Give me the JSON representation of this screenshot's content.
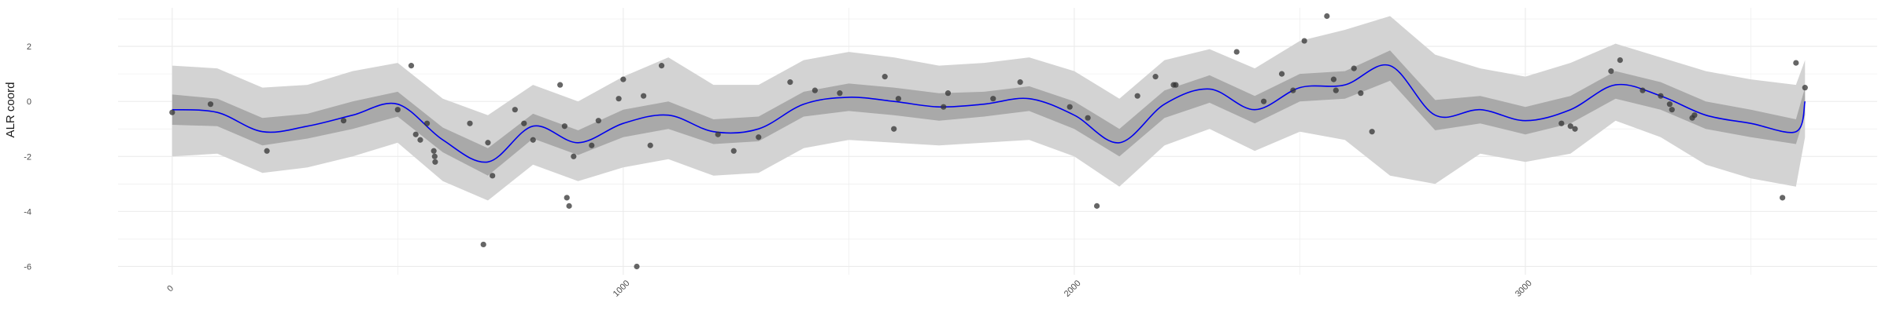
{
  "chart_data": {
    "type": "line",
    "title": "",
    "xlabel": "",
    "ylabel": "ALR coord",
    "xlim": [
      -120,
      3780
    ],
    "ylim": [
      -6.3,
      3.4
    ],
    "grid": true,
    "legend": "none",
    "x_ticks": [
      0,
      1000,
      2000,
      3000
    ],
    "x_tick_labels": [
      "0",
      "1000",
      "2000",
      "3000"
    ],
    "y_ticks": [
      -6,
      -4,
      -2,
      0,
      2
    ],
    "y_tick_labels": [
      "-6",
      "-4",
      "-2",
      "0",
      "2"
    ],
    "colors": {
      "mean_line": "#0000ee",
      "inner_band": "#a9a9a9",
      "outer_band": "#d3d3d3",
      "points": "#333333",
      "grid": "#ebebeb"
    },
    "series": [
      {
        "kind": "smooth_mean",
        "x": [
          0,
          100,
          200,
          300,
          400,
          500,
          600,
          700,
          800,
          900,
          1000,
          1100,
          1200,
          1300,
          1400,
          1500,
          1600,
          1700,
          1800,
          1900,
          2000,
          2100,
          2200,
          2300,
          2400,
          2500,
          2600,
          2700,
          2800,
          2900,
          3000,
          3100,
          3200,
          3300,
          3400,
          3500,
          3600,
          3620
        ],
        "mean": [
          -0.3,
          -0.4,
          -1.1,
          -0.9,
          -0.5,
          -0.1,
          -1.4,
          -2.2,
          -0.9,
          -1.5,
          -0.8,
          -0.5,
          -1.1,
          -1.0,
          -0.1,
          0.15,
          0.0,
          -0.2,
          -0.1,
          0.1,
          -0.5,
          -1.5,
          -0.1,
          0.45,
          -0.3,
          0.5,
          0.6,
          1.3,
          -0.5,
          -0.3,
          -0.7,
          -0.3,
          0.6,
          0.2,
          -0.5,
          -0.8,
          -1.1,
          0.0
        ],
        "inner_lower": [
          -0.85,
          -0.9,
          -1.6,
          -1.35,
          -1.0,
          -0.55,
          -1.85,
          -2.7,
          -1.35,
          -1.95,
          -1.3,
          -1.0,
          -1.55,
          -1.45,
          -0.55,
          -0.35,
          -0.5,
          -0.7,
          -0.55,
          -0.35,
          -1.0,
          -2.0,
          -0.6,
          -0.05,
          -0.8,
          0.0,
          0.1,
          0.75,
          -1.05,
          -0.8,
          -1.2,
          -0.8,
          0.1,
          -0.3,
          -1.0,
          -1.3,
          -1.55,
          -0.5
        ],
        "inner_upper": [
          0.25,
          0.1,
          -0.6,
          -0.45,
          0.0,
          0.35,
          -0.95,
          -1.7,
          -0.45,
          -1.05,
          -0.3,
          0.0,
          -0.65,
          -0.55,
          0.35,
          0.65,
          0.5,
          0.3,
          0.35,
          0.55,
          0.0,
          -1.0,
          0.4,
          0.95,
          0.2,
          1.0,
          1.1,
          1.85,
          0.05,
          0.2,
          -0.2,
          0.2,
          1.1,
          0.7,
          0.0,
          -0.3,
          -0.65,
          0.5
        ],
        "outer_lower": [
          -2.0,
          -1.9,
          -2.6,
          -2.4,
          -2.0,
          -1.5,
          -2.9,
          -3.6,
          -2.3,
          -2.9,
          -2.4,
          -2.1,
          -2.7,
          -2.6,
          -1.7,
          -1.4,
          -1.5,
          -1.6,
          -1.5,
          -1.4,
          -2.0,
          -3.1,
          -1.6,
          -1.0,
          -1.8,
          -1.1,
          -1.4,
          -2.7,
          -3.0,
          -1.9,
          -2.2,
          -1.9,
          -0.7,
          -1.3,
          -2.3,
          -2.8,
          -3.1,
          -1.3
        ],
        "outer_upper": [
          1.3,
          1.2,
          0.5,
          0.6,
          1.1,
          1.4,
          0.1,
          -0.5,
          0.6,
          0.0,
          0.9,
          1.6,
          0.6,
          0.6,
          1.5,
          1.8,
          1.6,
          1.3,
          1.4,
          1.6,
          1.1,
          0.1,
          1.5,
          1.9,
          1.2,
          2.2,
          2.6,
          3.1,
          1.7,
          1.2,
          0.9,
          1.4,
          2.1,
          1.6,
          1.1,
          0.8,
          0.6,
          1.5
        ]
      },
      {
        "kind": "observations",
        "points": [
          [
            0,
            -0.4
          ],
          [
            85,
            -0.1
          ],
          [
            210,
            -1.8
          ],
          [
            380,
            -0.7
          ],
          [
            500,
            -0.3
          ],
          [
            530,
            1.3
          ],
          [
            540,
            -1.2
          ],
          [
            550,
            -1.4
          ],
          [
            565,
            -0.8
          ],
          [
            580,
            -1.8
          ],
          [
            582,
            -2.0
          ],
          [
            583,
            -2.2
          ],
          [
            660,
            -0.8
          ],
          [
            690,
            -5.2
          ],
          [
            700,
            -1.5
          ],
          [
            710,
            -2.7
          ],
          [
            760,
            -0.3
          ],
          [
            780,
            -0.8
          ],
          [
            800,
            -1.4
          ],
          [
            860,
            0.6
          ],
          [
            870,
            -0.9
          ],
          [
            875,
            -3.5
          ],
          [
            880,
            -3.8
          ],
          [
            890,
            -2.0
          ],
          [
            930,
            -1.6
          ],
          [
            945,
            -0.7
          ],
          [
            990,
            0.1
          ],
          [
            1000,
            0.8
          ],
          [
            1030,
            -6.0
          ],
          [
            1045,
            0.2
          ],
          [
            1060,
            -1.6
          ],
          [
            1085,
            1.3
          ],
          [
            1210,
            -1.2
          ],
          [
            1245,
            -1.8
          ],
          [
            1300,
            -1.3
          ],
          [
            1370,
            0.7
          ],
          [
            1425,
            0.4
          ],
          [
            1480,
            0.3
          ],
          [
            1580,
            0.9
          ],
          [
            1600,
            -1.0
          ],
          [
            1610,
            0.1
          ],
          [
            1710,
            -0.2
          ],
          [
            1720,
            0.3
          ],
          [
            1820,
            0.1
          ],
          [
            1880,
            0.7
          ],
          [
            1990,
            -0.2
          ],
          [
            2030,
            -0.6
          ],
          [
            2050,
            -3.8
          ],
          [
            2140,
            0.2
          ],
          [
            2180,
            0.9
          ],
          [
            2220,
            0.6
          ],
          [
            2225,
            0.6
          ],
          [
            2360,
            1.8
          ],
          [
            2420,
            0.0
          ],
          [
            2460,
            1.0
          ],
          [
            2485,
            0.4
          ],
          [
            2510,
            2.2
          ],
          [
            2560,
            3.1
          ],
          [
            2575,
            0.8
          ],
          [
            2580,
            0.4
          ],
          [
            2620,
            1.2
          ],
          [
            2635,
            0.3
          ],
          [
            2660,
            -1.1
          ],
          [
            3080,
            -0.8
          ],
          [
            3100,
            -0.9
          ],
          [
            3110,
            -1.0
          ],
          [
            3190,
            1.1
          ],
          [
            3210,
            1.5
          ],
          [
            3260,
            0.4
          ],
          [
            3300,
            0.2
          ],
          [
            3320,
            -0.1
          ],
          [
            3325,
            -0.3
          ],
          [
            3370,
            -0.6
          ],
          [
            3375,
            -0.5
          ],
          [
            3570,
            -3.5
          ],
          [
            3600,
            1.4
          ],
          [
            3620,
            0.5
          ]
        ]
      }
    ]
  }
}
